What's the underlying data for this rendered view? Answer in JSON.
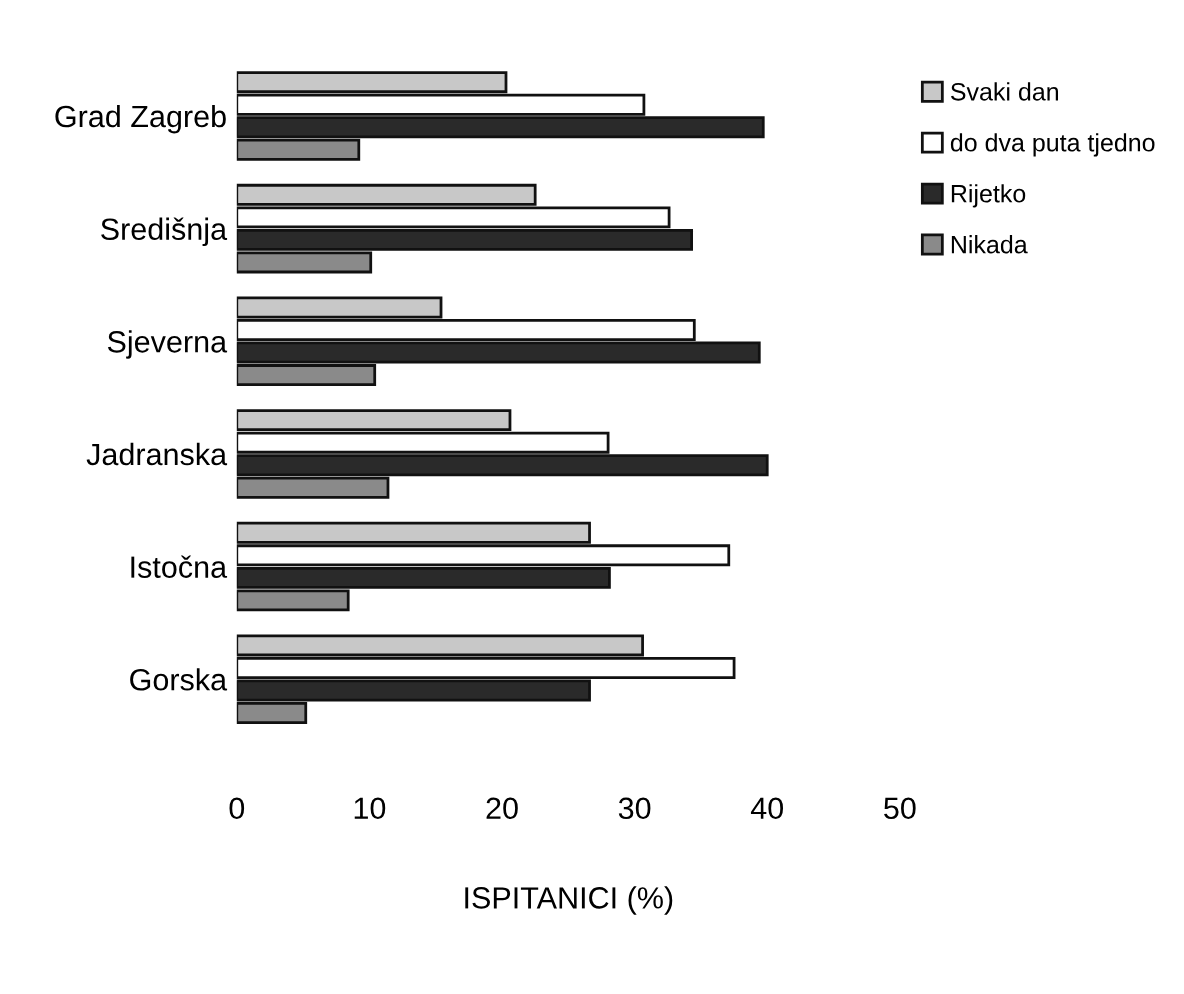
{
  "chart_data": {
    "type": "bar",
    "orientation": "horizontal",
    "xlabel": "ISPITANICI (%)",
    "categories": [
      "Grad Zagreb",
      "Središnja",
      "Sjeverna",
      "Jadranska",
      "Istočna",
      "Gorska"
    ],
    "series": [
      {
        "name": "Svaki dan",
        "color": "#c8c8c8",
        "values": [
          20.3,
          22.5,
          15.4,
          20.6,
          26.6,
          30.6
        ]
      },
      {
        "name": "do dva puta tjedno",
        "color": "#ffffff",
        "values": [
          30.7,
          32.6,
          34.5,
          28.0,
          37.1,
          37.5
        ]
      },
      {
        "name": "Rijetko",
        "color": "#2a2a2a",
        "values": [
          39.7,
          34.3,
          39.4,
          40.0,
          28.1,
          26.6
        ]
      },
      {
        "name": "Nikada",
        "color": "#8a8a8a",
        "values": [
          9.2,
          10.1,
          10.4,
          11.4,
          8.4,
          5.2
        ]
      }
    ],
    "xlim": [
      0,
      50
    ],
    "xticks": [
      0,
      10,
      20,
      30,
      40,
      50
    ],
    "grid": false,
    "legend": "top right"
  }
}
